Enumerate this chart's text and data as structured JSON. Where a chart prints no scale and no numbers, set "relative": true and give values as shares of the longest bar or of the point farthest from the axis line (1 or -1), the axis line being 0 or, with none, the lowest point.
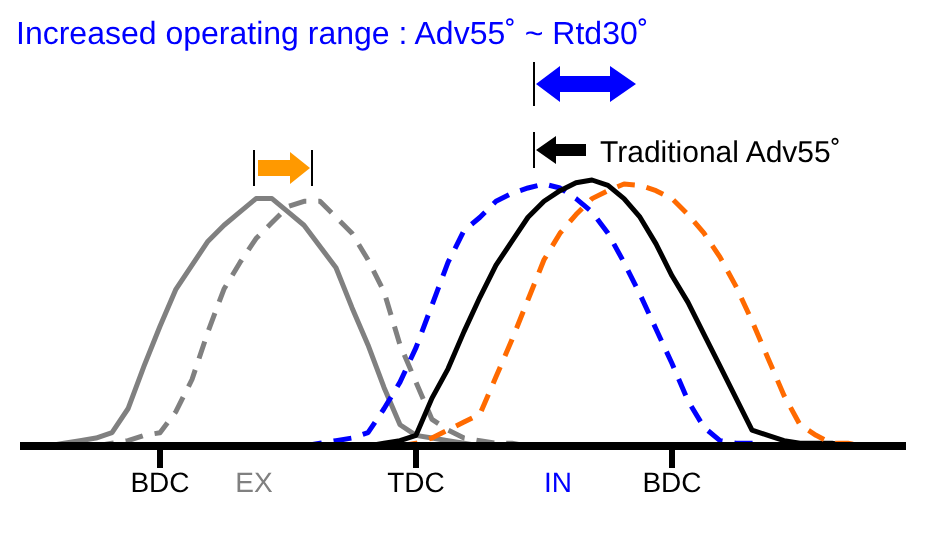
{
  "chart_data": {
    "type": "line",
    "relative": true,
    "title": "Increased operating range : Adv55˚ ~ Rtd30˚",
    "categories": [
      null,
      null,
      null,
      null,
      null,
      null,
      null,
      null,
      "BDC",
      null,
      null,
      null,
      null,
      null,
      null,
      null,
      null,
      null,
      null,
      null,
      null,
      null,
      null,
      null,
      "TDC",
      null,
      null,
      null,
      null,
      null,
      null,
      null,
      null,
      null,
      null,
      null,
      null,
      null,
      null,
      null,
      "BDC",
      null,
      null,
      null,
      null,
      null,
      null,
      null,
      null,
      null,
      null,
      null,
      null,
      null,
      null
    ],
    "grid": false,
    "marker": "none",
    "series": [
      {
        "color": "#808080",
        "line_style": "solid",
        "values": [
          null,
          0,
          0.01,
          0.02,
          0.03,
          0.05,
          0.14,
          0.3,
          0.45,
          0.59,
          0.68,
          0.77,
          0.83,
          0.88,
          0.93,
          0.93,
          0.88,
          0.83,
          0.75,
          0.67,
          0.52,
          0.38,
          0.22,
          0.08,
          0.04,
          0.03,
          0.02,
          0.01,
          0,
          null,
          null,
          null,
          null,
          null,
          null,
          null,
          null,
          null,
          null,
          null,
          null,
          null,
          null,
          null,
          null,
          null,
          null,
          null,
          null,
          null,
          null,
          null,
          null,
          null,
          null
        ]
      },
      {
        "color": "#808080",
        "line_style": "dashed",
        "values": [
          null,
          null,
          null,
          null,
          0,
          0.01,
          0.02,
          0.04,
          0.05,
          0.13,
          0.25,
          0.43,
          0.59,
          0.69,
          0.78,
          0.84,
          0.9,
          0.92,
          0.92,
          0.86,
          0.8,
          0.7,
          0.58,
          0.38,
          0.24,
          0.1,
          0.06,
          0.03,
          0.02,
          0.01,
          0.01,
          0,
          null,
          null,
          null,
          null,
          null,
          null,
          null,
          null,
          null,
          null,
          null,
          null,
          null,
          null,
          null,
          null,
          null,
          null,
          null,
          null,
          null,
          null,
          null
        ]
      },
      {
        "color": "#0000ff",
        "line_style": "dashed",
        "values": [
          null,
          null,
          null,
          null,
          null,
          null,
          null,
          null,
          null,
          null,
          null,
          null,
          null,
          null,
          null,
          null,
          null,
          0,
          0.01,
          0.02,
          0.03,
          0.05,
          0.14,
          0.24,
          0.37,
          0.53,
          0.69,
          0.81,
          0.86,
          0.92,
          0.95,
          0.97,
          0.985,
          0.97,
          0.93,
          0.88,
          0.8,
          0.69,
          0.57,
          0.44,
          0.31,
          0.17,
          0.07,
          0.02,
          0.01,
          0.01,
          0,
          0,
          null,
          null,
          null,
          null,
          null,
          null,
          null
        ]
      },
      {
        "color": "#000000",
        "line_style": "solid",
        "values": [
          null,
          null,
          null,
          null,
          null,
          null,
          null,
          null,
          null,
          null,
          null,
          null,
          null,
          null,
          null,
          null,
          null,
          null,
          null,
          null,
          null,
          0,
          0.01,
          0.02,
          0.04,
          0.18,
          0.29,
          0.43,
          0.56,
          0.68,
          0.77,
          0.86,
          0.92,
          0.96,
          0.99,
          1,
          0.98,
          0.93,
          0.86,
          0.76,
          0.64,
          0.54,
          0.42,
          0.3,
          0.18,
          0.06,
          0.04,
          0.02,
          0.01,
          0.01,
          0.01,
          0,
          0,
          0,
          null
        ]
      },
      {
        "color": "#ff6a00",
        "line_style": "dashed",
        "values": [
          null,
          null,
          null,
          null,
          null,
          null,
          null,
          null,
          null,
          null,
          null,
          null,
          null,
          null,
          null,
          null,
          null,
          null,
          null,
          null,
          null,
          null,
          null,
          0,
          0.01,
          0.03,
          0.06,
          0.09,
          0.12,
          0.26,
          0.4,
          0.55,
          0.7,
          0.8,
          0.87,
          0.93,
          0.96,
          0.985,
          0.98,
          0.96,
          0.93,
          0.87,
          0.8,
          0.71,
          0.6,
          0.47,
          0.33,
          0.19,
          0.08,
          0.04,
          0.01,
          0.01,
          0,
          0,
          0
        ]
      }
    ],
    "annotations": [
      "EX",
      "IN",
      "Traditional Adv55˚"
    ]
  }
}
